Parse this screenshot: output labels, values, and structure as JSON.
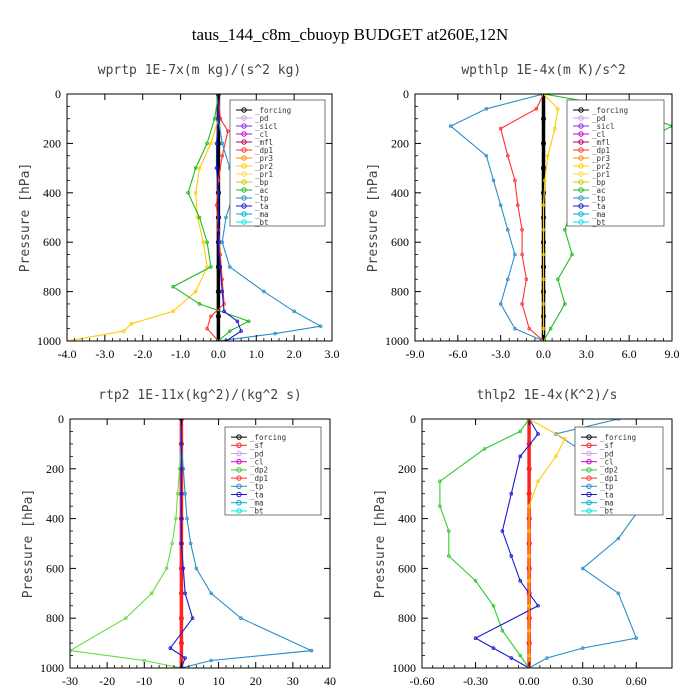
{
  "figure_title": "taus_144_c8m_cbuoyp  BUDGET at260E,12N",
  "colors": {
    "forcing": "#000000",
    "pd": "#c8a2e8",
    "sicl": "#8a2be2",
    "cl": "#cc00cc",
    "mfl": "#b00060",
    "dp1": "#ff3030",
    "pr3": "#ff8800",
    "pr2": "#ffcc00",
    "pr1": "#ffd84a",
    "bp": "#cccc00",
    "ac": "#22bb22",
    "tp": "#2a8fc8",
    "ta": "#1a1ad0",
    "ma": "#00aacc",
    "bt": "#00e8e8",
    "sf": "#ff2020",
    "dp2": "#33cc33",
    "dp1_green": "#66dd44",
    "zero_line": "#cc2020"
  },
  "chart_data": [
    {
      "type": "line",
      "title": "wprtp  1E-7x(m kg)/(s^2 kg)",
      "ylabel": "Pressure [hPa]",
      "xlim": [
        -4.0,
        3.0
      ],
      "ylim": [
        1000,
        0
      ],
      "xticks": [
        "-4.0",
        "-3.0",
        "-2.0",
        "-1.0",
        "0.0",
        "1.0",
        "2.0",
        "3.0"
      ],
      "yticks": [
        "0",
        "200",
        "400",
        "600",
        "800",
        "1000"
      ],
      "legend": [
        "_forcing",
        "_pd",
        "_sicl",
        "_cl",
        "_mfl",
        "_dp1",
        "_pr3",
        "_pr2",
        "_pr1",
        "_bp",
        "_ac",
        "_tp",
        "_ta",
        "_ma",
        "_bt"
      ],
      "legend_position": "top-right",
      "series": [
        {
          "name": "_forcing",
          "color": "#000000",
          "x": [
            0,
            0,
            0,
            0,
            0,
            0,
            0,
            0,
            0,
            0,
            0
          ],
          "y": [
            0,
            100,
            200,
            300,
            400,
            500,
            600,
            700,
            800,
            900,
            1000
          ]
        },
        {
          "name": "_dp1",
          "color": "#ff3030",
          "x": [
            0,
            0.05,
            0.25,
            0.1,
            0,
            -0.05,
            0,
            0.05,
            0.1,
            0.15,
            -0.2,
            -0.3,
            0
          ],
          "y": [
            0,
            100,
            150,
            250,
            350,
            450,
            550,
            650,
            750,
            850,
            900,
            950,
            1000
          ]
        },
        {
          "name": "_pr2",
          "color": "#ffcc00",
          "x": [
            0,
            0,
            -0.2,
            -0.5,
            -0.6,
            -0.55,
            -0.4,
            -0.3,
            -0.6,
            -1.2,
            -2.3,
            -2.5,
            -4.0
          ],
          "y": [
            0,
            100,
            200,
            300,
            400,
            500,
            600,
            700,
            800,
            880,
            930,
            960,
            1000
          ]
        },
        {
          "name": "_ac",
          "color": "#22bb22",
          "x": [
            0,
            -0.1,
            -0.3,
            -0.6,
            -0.8,
            -0.5,
            -0.3,
            -0.2,
            -1.2,
            -0.5,
            0.8,
            0.3,
            0
          ],
          "y": [
            0,
            100,
            200,
            300,
            400,
            500,
            600,
            700,
            780,
            850,
            920,
            960,
            1000
          ]
        },
        {
          "name": "_tp",
          "color": "#2a8fc8",
          "x": [
            0,
            0,
            0.1,
            0.3,
            0.4,
            0.2,
            0.1,
            0.3,
            1.2,
            2.0,
            2.7,
            1.5,
            0
          ],
          "y": [
            0,
            100,
            200,
            300,
            400,
            500,
            600,
            700,
            800,
            880,
            940,
            970,
            1000
          ]
        },
        {
          "name": "_ta",
          "color": "#1a1ad0",
          "x": [
            0,
            0,
            -0.05,
            -0.05,
            0,
            0,
            0,
            0.05,
            0.1,
            0.15,
            0.5,
            0.6,
            0.2
          ],
          "y": [
            0,
            100,
            200,
            300,
            400,
            500,
            600,
            700,
            800,
            880,
            920,
            960,
            1000
          ]
        }
      ]
    },
    {
      "type": "line",
      "title": "wpthlp  1E-4x(m K)/s^2",
      "ylabel": "Pressure [hPa]",
      "xlim": [
        -9.0,
        9.0
      ],
      "ylim": [
        1000,
        0
      ],
      "xticks": [
        "-9.0",
        "-6.0",
        "-3.0",
        "0.0",
        "3.0",
        "6.0",
        "9.0"
      ],
      "yticks": [
        "0",
        "200",
        "400",
        "600",
        "800",
        "1000"
      ],
      "legend": [
        "_forcing",
        "_pd",
        "_sicl",
        "_cl",
        "_mfl",
        "_dp1",
        "_pr3",
        "_pr2",
        "_pr1",
        "_bp",
        "_ac",
        "_tp",
        "_ta",
        "_ma",
        "_bt"
      ],
      "legend_position": "top-right",
      "series": [
        {
          "name": "_forcing",
          "color": "#000000",
          "x": [
            0,
            0,
            0,
            0,
            0,
            0,
            0,
            0,
            0,
            0,
            0
          ],
          "y": [
            0,
            100,
            200,
            300,
            400,
            500,
            600,
            700,
            800,
            900,
            1000
          ]
        },
        {
          "name": "_dp1",
          "color": "#ff3030",
          "x": [
            0,
            -0.5,
            -3.0,
            -2.5,
            -2.0,
            -1.8,
            -1.5,
            -1.5,
            -1.2,
            -1.5,
            -1.0,
            0
          ],
          "y": [
            0,
            60,
            140,
            250,
            350,
            450,
            550,
            650,
            750,
            850,
            950,
            1000
          ]
        },
        {
          "name": "_ac",
          "color": "#22bb22",
          "x": [
            0,
            6.0,
            9.0,
            5.0,
            3.0,
            2.0,
            1.5,
            2.0,
            1.0,
            1.5,
            0.5,
            0
          ],
          "y": [
            0,
            60,
            130,
            250,
            350,
            450,
            550,
            650,
            750,
            850,
            950,
            1000
          ]
        },
        {
          "name": "_tp",
          "color": "#2a8fc8",
          "x": [
            0,
            -4.0,
            -6.5,
            -4.0,
            -3.5,
            -3.0,
            -2.5,
            -2.0,
            -2.5,
            -3.0,
            -2.0,
            0
          ],
          "y": [
            0,
            60,
            130,
            250,
            350,
            450,
            550,
            650,
            750,
            850,
            950,
            1000
          ]
        },
        {
          "name": "_pr2",
          "color": "#ffcc00",
          "x": [
            0,
            1.0,
            0.8,
            0.3,
            0.1,
            0,
            0,
            0,
            0,
            0,
            0,
            0
          ],
          "y": [
            0,
            60,
            140,
            250,
            350,
            450,
            550,
            650,
            750,
            850,
            950,
            1000
          ]
        }
      ]
    },
    {
      "type": "line",
      "title": "rtp2  1E-11x(kg^2)/(kg^2 s)",
      "ylabel": "Pressure [hPa]",
      "xlim": [
        -30,
        40
      ],
      "ylim": [
        1000,
        0
      ],
      "xticks": [
        "-30",
        "-20",
        "-10",
        "0",
        "10",
        "20",
        "30",
        "40"
      ],
      "yticks": [
        "0",
        "200",
        "400",
        "600",
        "800",
        "1000"
      ],
      "legend": [
        "_forcing",
        "_sf",
        "_pd",
        "_cl",
        "_dp2",
        "_dp1",
        "_tp",
        "_ta",
        "_ma",
        "_bt"
      ],
      "legend_position": "top-right",
      "series": [
        {
          "name": "_forcing",
          "color": "#ff2020",
          "x": [
            0,
            0,
            0,
            0,
            0,
            0,
            0,
            0,
            0,
            0,
            0
          ],
          "y": [
            0,
            100,
            200,
            300,
            400,
            500,
            600,
            700,
            800,
            900,
            1000
          ]
        },
        {
          "name": "_dp2",
          "color": "#66dd44",
          "x": [
            0,
            0,
            -0.5,
            -1,
            -1.5,
            -2.5,
            -4,
            -8,
            -15,
            -30,
            -10,
            0
          ],
          "y": [
            0,
            100,
            200,
            300,
            400,
            500,
            600,
            700,
            800,
            930,
            970,
            1000
          ]
        },
        {
          "name": "_tp",
          "color": "#2a8fc8",
          "x": [
            0,
            0,
            0.5,
            1,
            1.5,
            2.5,
            4,
            8,
            16,
            35,
            8,
            0
          ],
          "y": [
            0,
            100,
            200,
            300,
            400,
            500,
            600,
            700,
            800,
            930,
            970,
            1000
          ]
        },
        {
          "name": "_ta",
          "color": "#1a1ad0",
          "x": [
            0,
            0,
            0,
            0,
            0,
            0,
            0.5,
            1,
            3,
            -3,
            1,
            0
          ],
          "y": [
            0,
            100,
            200,
            300,
            400,
            500,
            600,
            700,
            800,
            920,
            960,
            1000
          ]
        }
      ]
    },
    {
      "type": "line",
      "title": "thlp2  1E-4x(K^2)/s",
      "ylabel": "Pressure [hPa]",
      "xlim": [
        -0.6,
        0.8
      ],
      "ylim": [
        1000,
        0
      ],
      "xticks": [
        "-0.60",
        "-0.30",
        "0.00",
        "0.30",
        "0.60"
      ],
      "yticks": [
        "0",
        "200",
        "400",
        "600",
        "800",
        "1000"
      ],
      "legend": [
        "_forcing",
        "_sf",
        "_pd",
        "_cl",
        "_dp2",
        "_dp1",
        "_tp",
        "_ta",
        "_ma",
        "_bt"
      ],
      "legend_position": "top-right",
      "series": [
        {
          "name": "_forcing",
          "color": "#ff2020",
          "x": [
            0,
            0,
            0,
            0,
            0,
            0,
            0,
            0,
            0,
            0,
            0
          ],
          "y": [
            0,
            100,
            200,
            300,
            400,
            500,
            600,
            700,
            800,
            900,
            1000
          ]
        },
        {
          "name": "_dp2",
          "color": "#33cc33",
          "x": [
            0,
            -0.05,
            -0.25,
            -0.5,
            -0.5,
            -0.45,
            -0.45,
            -0.3,
            -0.2,
            -0.15,
            -0.05,
            0
          ],
          "y": [
            0,
            50,
            120,
            250,
            350,
            450,
            550,
            650,
            750,
            850,
            950,
            1000
          ]
        },
        {
          "name": "_tp",
          "color": "#2a8fc8",
          "x": [
            0.5,
            0.15,
            0.3,
            0.5,
            0.6,
            0.5,
            0.3,
            0.5,
            0.6,
            0.3,
            0.1,
            0
          ],
          "y": [
            0,
            60,
            130,
            250,
            380,
            480,
            600,
            700,
            880,
            920,
            960,
            1000
          ]
        },
        {
          "name": "_ta",
          "color": "#1a1ad0",
          "x": [
            0,
            0.05,
            -0.05,
            -0.1,
            -0.15,
            -0.1,
            -0.05,
            0.05,
            -0.3,
            -0.2,
            -0.1,
            0
          ],
          "y": [
            0,
            60,
            150,
            300,
            450,
            550,
            650,
            750,
            880,
            920,
            960,
            1000
          ]
        },
        {
          "name": "_pd",
          "color": "#ffcc00",
          "x": [
            0,
            0.2,
            0.15,
            0.05,
            0,
            0,
            0,
            0,
            0,
            0,
            0,
            0
          ],
          "y": [
            0,
            80,
            150,
            250,
            350,
            450,
            550,
            650,
            750,
            850,
            950,
            1000
          ]
        }
      ]
    }
  ]
}
